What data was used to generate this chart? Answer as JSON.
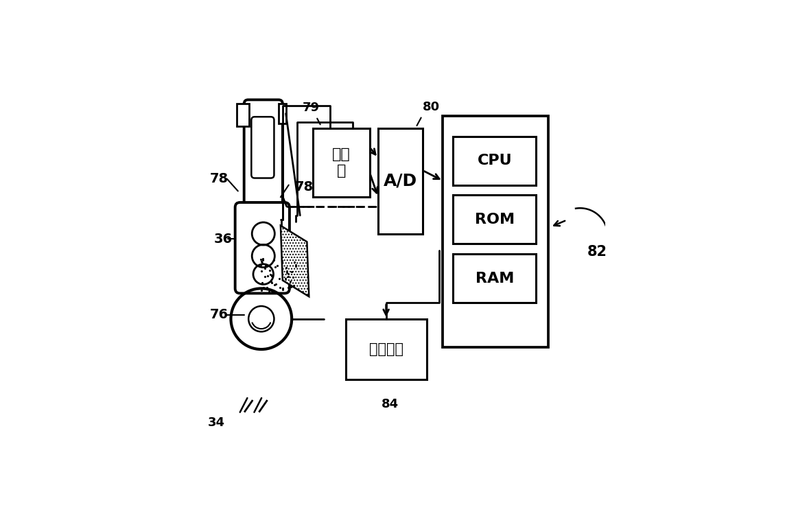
{
  "bg_color": "#ffffff",
  "labels": {
    "amplifier": "放大\n器",
    "ad": "A/D",
    "cpu": "CPU",
    "rom": "ROM",
    "ram": "RAM",
    "output": "输出装置",
    "n79": "79",
    "n80": "80",
    "n78a": "78",
    "n78b": "78",
    "n36": "36",
    "n76": "76",
    "n34": "34",
    "n82": "82",
    "n84": "84"
  },
  "amp": [
    0.28,
    0.67,
    0.14,
    0.17
  ],
  "ad": [
    0.44,
    0.58,
    0.11,
    0.26
  ],
  "comp": [
    0.6,
    0.3,
    0.26,
    0.57
  ],
  "cpu_inner": [
    0.625,
    0.7,
    0.205,
    0.12
  ],
  "rom_inner": [
    0.625,
    0.555,
    0.205,
    0.12
  ],
  "ram_inner": [
    0.625,
    0.41,
    0.205,
    0.12
  ],
  "out": [
    0.36,
    0.22,
    0.2,
    0.15
  ]
}
